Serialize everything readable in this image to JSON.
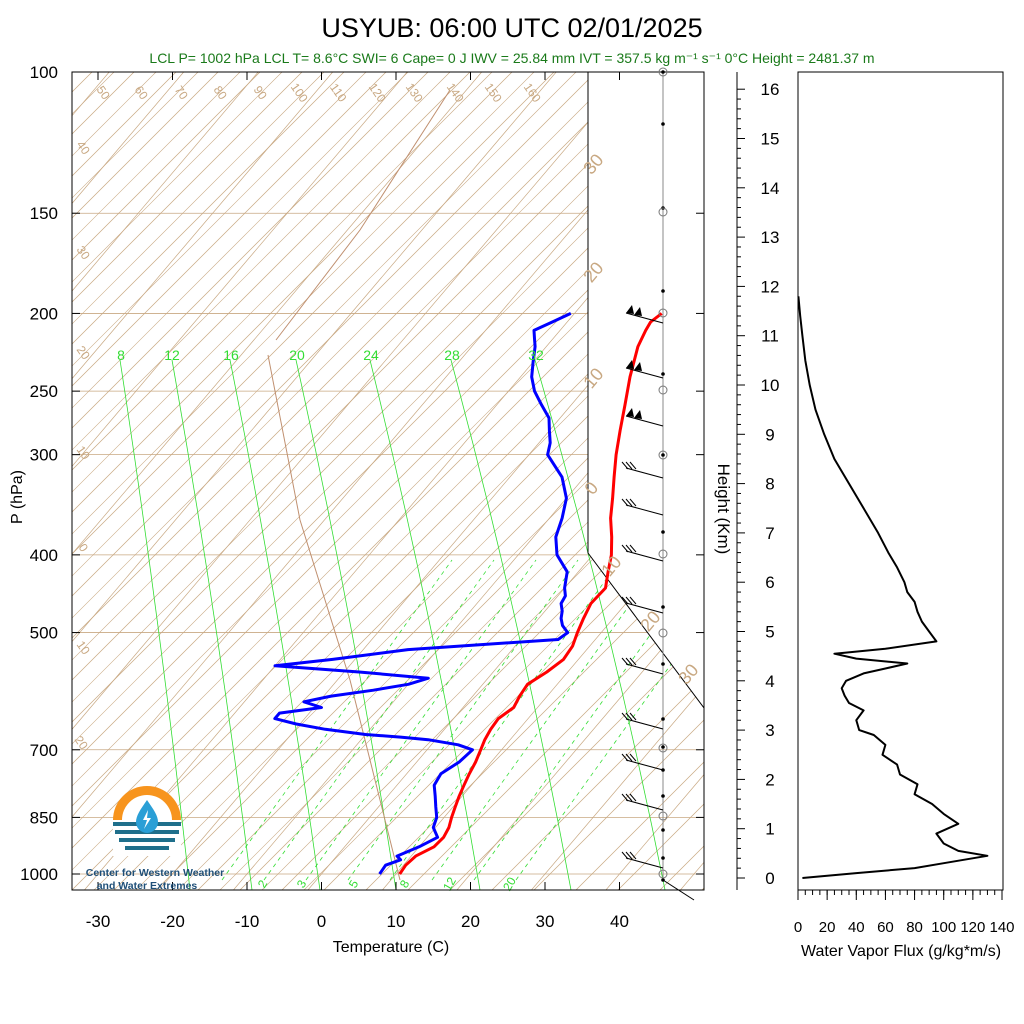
{
  "title": "USYUB: 06:00 UTC 02/01/2025",
  "subtitle": "LCL P= 1002 hPa  LCL T= 8.6°C  SWI= 6  Cape= 0 J  IWV = 25.84 mm  IVT = 357.5 kg m⁻¹ s⁻¹  0°C Height = 2481.37 m",
  "logo": {
    "line1": "Center for Western Weather",
    "line2": "and Water Extremes"
  },
  "colors": {
    "temperature": "#ff0000",
    "dewpoint": "#0000ff",
    "mixing_ratio": "#33dd33",
    "adiabat": "#c8a882",
    "title": "#000000",
    "subtitle": "#1a7a1a",
    "logo_orange": "#f7941d",
    "logo_teal": "#1f6f8b"
  },
  "chart_data": [
    {
      "type": "line",
      "name": "skewt",
      "xlabel": "Temperature (C)",
      "ylabel": "P (hPa)",
      "x_ticks": [
        "-30",
        "-20",
        "-10",
        "0",
        "10",
        "20",
        "30",
        "40"
      ],
      "y_ticks": [
        "100",
        "150",
        "200",
        "250",
        "300",
        "400",
        "500",
        "700",
        "850",
        "1000"
      ],
      "y_tick_values": [
        100,
        150,
        200,
        250,
        300,
        400,
        500,
        700,
        850,
        1000
      ],
      "xlim": [
        -34,
        47
      ],
      "ylim": [
        1050,
        100
      ],
      "y_scale": "log",
      "mixing_ratio_labels_top": [
        "8",
        "12",
        "16",
        "20",
        "24",
        "28",
        "32"
      ],
      "mixing_ratio_labels_bottom": [
        "2",
        "3",
        "5",
        "8",
        "12",
        "20"
      ],
      "dry_adiabat_labels": [
        "50",
        "60",
        "70",
        "80",
        "90",
        "100",
        "110",
        "120",
        "130",
        "140",
        "150",
        "160"
      ],
      "moist_adiabat_labels": [
        "40",
        "30",
        "20",
        "10",
        "0",
        "10",
        "20"
      ],
      "hodo_labels": [
        "30",
        "20",
        "10",
        "0",
        "10",
        "20",
        "30"
      ],
      "series": [
        {
          "name": "Temperature",
          "p": [
            1000,
            975,
            950,
            925,
            900,
            875,
            850,
            825,
            800,
            775,
            750,
            725,
            700,
            680,
            660,
            640,
            620,
            600,
            580,
            560,
            540,
            520,
            500,
            480,
            460,
            440,
            420,
            400,
            380,
            360,
            340,
            320,
            300,
            280,
            260,
            240,
            220,
            210,
            205,
            200
          ],
          "t": [
            10.5,
            10.3,
            10.6,
            12.0,
            12.2,
            11.8,
            11.0,
            10.3,
            9.6,
            9.0,
            8.4,
            7.9,
            7.2,
            6.6,
            6.2,
            6.0,
            6.8,
            6.3,
            6.0,
            7.2,
            8.0,
            7.7,
            6.8,
            6.0,
            5.3,
            5.5,
            4.0,
            2.5,
            0.5,
            -1.8,
            -3.8,
            -6.0,
            -8.3,
            -10.5,
            -12.8,
            -15.3,
            -17.7,
            -18.5,
            -18.8,
            -18.3
          ]
        },
        {
          "name": "Dewpoint",
          "p": [
            1000,
            975,
            960,
            950,
            925,
            900,
            875,
            850,
            825,
            800,
            775,
            750,
            725,
            700,
            690,
            680,
            675,
            670,
            660,
            650,
            640,
            630,
            620,
            610,
            600,
            590,
            580,
            570,
            560,
            550,
            540,
            525,
            510,
            500,
            490,
            480,
            470,
            460,
            450,
            440,
            420,
            400,
            380,
            360,
            340,
            320,
            300,
            290,
            280,
            270,
            260,
            250,
            240,
            230,
            220,
            215,
            210,
            205,
            200
          ],
          "t": [
            7.8,
            7.6,
            9.0,
            8.1,
            10.0,
            11.4,
            9.7,
            9.0,
            7.7,
            6.4,
            5.0,
            4.6,
            5.7,
            6.1,
            3.6,
            -1.0,
            -5.0,
            -10.0,
            -16.0,
            -20.5,
            -24.0,
            -24.0,
            -19.0,
            -22.0,
            -19.0,
            -14.0,
            -10.0,
            -8.0,
            -18.0,
            -30.0,
            -23.0,
            -14.0,
            5.0,
            5.5,
            4.0,
            3.0,
            2.3,
            1.3,
            1.0,
            0.0,
            -1.5,
            -4.8,
            -7.0,
            -8.3,
            -10.0,
            -13.0,
            -17.5,
            -18.5,
            -20.0,
            -21.5,
            -24.0,
            -26.5,
            -28.5,
            -30.0,
            -31.5,
            -32.5,
            -33.5,
            -32.0,
            -30.5
          ]
        }
      ]
    },
    {
      "type": "line",
      "name": "water-vapor-flux",
      "xlabel": "Water Vapor Flux (g/kg*m/s)",
      "ylabel": "Height (Km)",
      "x_ticks": [
        "0",
        "20",
        "40",
        "60",
        "80",
        "100",
        "120",
        "140"
      ],
      "y_ticks": [
        "0",
        "1",
        "2",
        "3",
        "4",
        "5",
        "6",
        "7",
        "8",
        "9",
        "10",
        "11",
        "12",
        "13",
        "14",
        "15",
        "16"
      ],
      "xlim": [
        0,
        140
      ],
      "ylim": [
        -0.2,
        16.4
      ],
      "series": [
        {
          "name": "Water Vapor Flux",
          "h": [
            0.0,
            0.1,
            0.2,
            0.3,
            0.45,
            0.55,
            0.7,
            0.9,
            1.1,
            1.3,
            1.5,
            1.7,
            1.9,
            2.1,
            2.3,
            2.5,
            2.7,
            2.9,
            3.0,
            3.2,
            3.4,
            3.55,
            3.7,
            3.85,
            4.0,
            4.15,
            4.25,
            4.35,
            4.45,
            4.55,
            4.65,
            4.8,
            5.0,
            5.2,
            5.4,
            5.6,
            5.8,
            6.0,
            6.3,
            6.6,
            7.0,
            7.5,
            8.0,
            8.5,
            9.0,
            9.5,
            10.0,
            10.5,
            11.0,
            11.4,
            11.8
          ],
          "v": [
            3,
            40,
            80,
            100,
            130,
            110,
            100,
            95,
            110,
            100,
            92,
            80,
            82,
            70,
            68,
            58,
            60,
            52,
            42,
            40,
            45,
            35,
            32,
            30,
            33,
            45,
            60,
            75,
            40,
            25,
            60,
            95,
            90,
            85,
            82,
            80,
            75,
            73,
            68,
            62,
            55,
            45,
            35,
            25,
            18,
            12,
            8,
            5,
            3,
            1.5,
            0.3
          ]
        }
      ]
    }
  ]
}
